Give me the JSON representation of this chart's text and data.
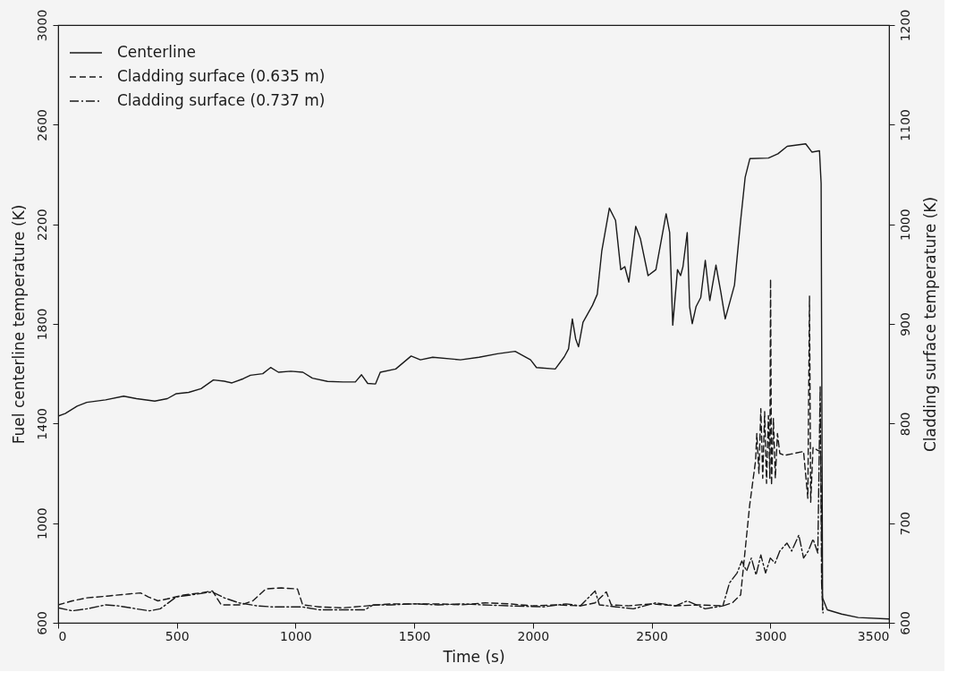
{
  "chart_data": {
    "type": "line",
    "xlabel": "Time (s)",
    "ylabel": "Fuel centerline temperature (K)",
    "y2label": "Cladding surface temperature (K)",
    "xlim": [
      0,
      3500
    ],
    "xticks": [
      0,
      500,
      1000,
      1500,
      2000,
      2500,
      3000,
      3500
    ],
    "ylim": [
      600,
      3000
    ],
    "yticks": [
      600,
      1000,
      1400,
      1800,
      2200,
      2600,
      3000
    ],
    "y2lim": [
      600,
      1200
    ],
    "y2ticks": [
      600,
      700,
      800,
      900,
      1000,
      1100,
      1200
    ],
    "legend": "top left",
    "series": [
      {
        "name": "Centerline",
        "color": "#1a1a1a",
        "line_style": "solid",
        "x": [
          0,
          30,
          80,
          121,
          200,
          276,
          330,
          407,
          460,
          498,
          550,
          602,
          654,
          700,
          732,
          780,
          810,
          862,
          895,
          928,
          980,
          1031,
          1071,
          1135,
          1200,
          1252,
          1278,
          1304,
          1337,
          1357,
          1422,
          1487,
          1526,
          1578,
          1695,
          1773,
          1850,
          1925,
          1990,
          2015,
          2094,
          2132,
          2150,
          2166,
          2180,
          2192,
          2211,
          2251,
          2271,
          2290,
          2322,
          2348,
          2370,
          2387,
          2404,
          2433,
          2453,
          2485,
          2518,
          2561,
          2576,
          2589,
          2609,
          2622,
          2632,
          2650,
          2660,
          2671,
          2687,
          2707,
          2726,
          2745,
          2771,
          2791,
          2810,
          2849,
          2875,
          2894,
          2914,
          2992,
          3032,
          3071,
          3149,
          3175,
          3207,
          3214,
          3220,
          3240,
          3300,
          3370,
          3500
        ],
        "values": [
          1430,
          1440,
          1470,
          1485,
          1495,
          1510,
          1500,
          1490,
          1500,
          1520,
          1525,
          1540,
          1575,
          1570,
          1563,
          1580,
          1594,
          1600,
          1625,
          1606,
          1610,
          1606,
          1582,
          1569,
          1567,
          1567,
          1596,
          1561,
          1559,
          1606,
          1619,
          1671,
          1656,
          1666,
          1656,
          1666,
          1680,
          1690,
          1656,
          1625,
          1619,
          1668,
          1700,
          1820,
          1740,
          1708,
          1807,
          1875,
          1919,
          2092,
          2265,
          2216,
          2018,
          2030,
          1968,
          2192,
          2141,
          1994,
          2018,
          2242,
          2167,
          1795,
          2018,
          1994,
          2030,
          2167,
          1869,
          1801,
          1869,
          1906,
          2055,
          1894,
          2036,
          1931,
          1820,
          1956,
          2216,
          2389,
          2464,
          2466,
          2483,
          2513,
          2523,
          2490,
          2495,
          2364,
          700,
          652,
          635,
          621,
          615
        ]
      },
      {
        "name": "Cladding surface (0.635 m)",
        "color": "#1a1a1a",
        "line_style": "dashed",
        "axis": "y2",
        "x": [
          0,
          60,
          121,
          215,
          300,
          347,
          380,
          420,
          460,
          530,
          600,
          650,
          687,
          730,
          770,
          820,
          875,
          940,
          1008,
          1030,
          1100,
          1200,
          1300,
          1400,
          1500,
          1600,
          1700,
          1800,
          1900,
          2000,
          2100,
          2200,
          2262,
          2309,
          2330,
          2400,
          2500,
          2600,
          2700,
          2800,
          2840,
          2875,
          2913,
          2938,
          2943,
          2952,
          2960,
          2968,
          2976,
          2984,
          2992,
          2998,
          3001,
          3005,
          3013,
          3021,
          3030,
          3040,
          3060,
          3100,
          3140,
          3158,
          3165,
          3170,
          3180,
          3200,
          3212,
          3220
        ],
        "values": [
          618,
          622,
          625,
          627,
          629,
          630,
          626,
          622,
          624,
          628,
          630,
          632,
          618,
          618,
          618,
          622,
          634,
          635,
          634,
          618,
          616,
          615,
          617,
          619,
          619,
          619,
          618,
          620,
          619,
          617,
          618,
          617,
          620,
          631,
          618,
          617,
          619,
          617,
          618,
          617,
          620,
          628,
          718,
          763,
          790,
          750,
          815,
          745,
          812,
          740,
          808,
          745,
          945,
          738,
          805,
          745,
          790,
          770,
          768,
          770,
          772,
          725,
          928,
          721,
          776,
          773,
          772,
          610
        ]
      },
      {
        "name": "Cladding surface (0.737 m)",
        "color": "#1a1a1a",
        "line_style": "dashdot",
        "axis": "y2",
        "x": [
          0,
          60,
          121,
          200,
          253,
          330,
          385,
          430,
          498,
          560,
          649,
          700,
          762,
          838,
          900,
          1026,
          1102,
          1200,
          1291,
          1328,
          1404,
          1500,
          1600,
          1700,
          1781,
          1900,
          2045,
          2140,
          2200,
          2262,
          2280,
          2350,
          2423,
          2517,
          2600,
          2650,
          2725,
          2800,
          2828,
          2860,
          2880,
          2900,
          2920,
          2940,
          2960,
          2980,
          3000,
          3020,
          3040,
          3070,
          3090,
          3120,
          3140,
          3160,
          3180,
          3200,
          3210,
          3216,
          3222
        ],
        "values": [
          615,
          612,
          614,
          618,
          617,
          614,
          612,
          614,
          626,
          628,
          631,
          625,
          620,
          617,
          616,
          616,
          613,
          613,
          613,
          618,
          618,
          619,
          618,
          619,
          618,
          617,
          616,
          619,
          617,
          632,
          618,
          616,
          614,
          620,
          617,
          622,
          614,
          617,
          640,
          650,
          662,
          652,
          665,
          648,
          668,
          650,
          665,
          660,
          672,
          680,
          672,
          688,
          665,
          672,
          684,
          670,
          838,
          640,
          610
        ]
      }
    ]
  }
}
